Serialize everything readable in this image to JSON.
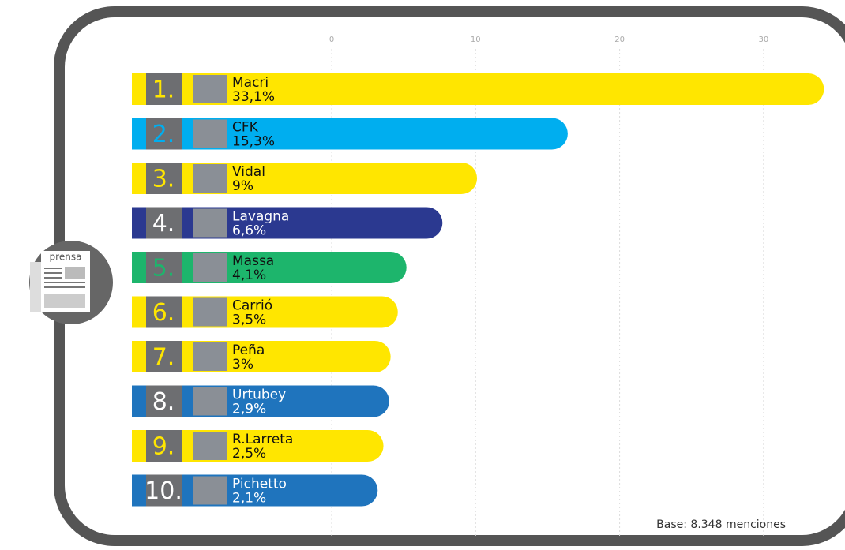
{
  "chart_data": {
    "type": "bar",
    "ranks": [
      "1.",
      "2.",
      "3.",
      "4.",
      "5.",
      "6.",
      "7.",
      "8.",
      "9.",
      "10."
    ],
    "categories": [
      "Macri",
      "CFK",
      "Vidal",
      "Lavagna",
      "Massa",
      "Carrió",
      "Peña",
      "Urtubey",
      "R.Larreta",
      "Pichetto"
    ],
    "values": [
      33.1,
      15.3,
      9,
      6.6,
      4.1,
      3.5,
      3,
      2.9,
      2.5,
      2.1
    ],
    "value_labels": [
      "33,1%",
      "15,3%",
      "9%",
      "6,6%",
      "4,1%",
      "3,5%",
      "3%",
      "2,9%",
      "2,5%",
      "2,1%"
    ],
    "colors": [
      "#ffe600",
      "#00aeef",
      "#ffe600",
      "#2b3990",
      "#1db56c",
      "#ffe600",
      "#ffe600",
      "#1f74bd",
      "#ffe600",
      "#1f74bd"
    ],
    "rank_colors": [
      "#ffe600",
      "#00aeef",
      "#ffe600",
      "#ffffff",
      "#1db56c",
      "#ffe600",
      "#ffe600",
      "#ffffff",
      "#ffe600",
      "#ffffff"
    ],
    "label_colors": [
      "#111111",
      "#111111",
      "#111111",
      "#ffffff",
      "#111111",
      "#111111",
      "#111111",
      "#ffffff",
      "#111111",
      "#ffffff"
    ],
    "xlim": [
      0,
      35
    ],
    "xticks": [
      0,
      10,
      20,
      30
    ],
    "grid": true,
    "icon_label": "prensa",
    "note": "Base: 8.348 menciones"
  }
}
